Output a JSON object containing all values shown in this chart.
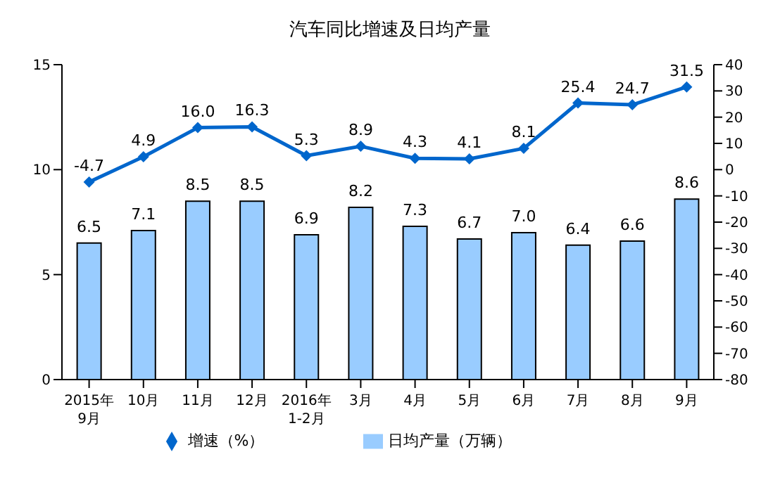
{
  "chart_data": {
    "type": "bar",
    "title": "汽车同比增速及日均产量",
    "categories": [
      "2015年\n9月",
      "10月",
      "11月",
      "12月",
      "2016年\n1-2月",
      "3月",
      "4月",
      "5月",
      "6月",
      "7月",
      "8月",
      "9月"
    ],
    "series": [
      {
        "name": "日均产量（万辆）",
        "color": "#99ccff",
        "values": [
          6.5,
          7.1,
          8.5,
          8.5,
          6.9,
          8.2,
          7.3,
          6.7,
          7.0,
          6.4,
          6.6,
          8.6
        ],
        "value_labels": [
          "6.5",
          "7.1",
          "8.5",
          "8.5",
          "6.9",
          "8.2",
          "7.3",
          "6.7",
          "7.0",
          "6.4",
          "6.6",
          "8.6"
        ]
      },
      {
        "name": "增速（%）",
        "type": "line",
        "axis": "y2",
        "color": "#0066cc",
        "marker": "diamond",
        "values": [
          -4.7,
          4.9,
          16.0,
          16.3,
          5.3,
          8.9,
          4.3,
          4.1,
          8.1,
          25.4,
          24.7,
          31.5
        ],
        "value_labels": [
          "-4.7",
          "4.9",
          "16.0",
          "16.3",
          "5.3",
          "8.9",
          "4.3",
          "4.1",
          "8.1",
          "25.4",
          "24.7",
          "31.5"
        ]
      }
    ],
    "ylim": [
      0,
      15
    ],
    "yticks": [
      0,
      5,
      10,
      15
    ],
    "y2lim": [
      -80,
      40
    ],
    "y2ticks": [
      -80,
      -70,
      -60,
      -50,
      -40,
      -30,
      -20,
      -10,
      0,
      10,
      20,
      30,
      40
    ],
    "legend": "bottom"
  }
}
